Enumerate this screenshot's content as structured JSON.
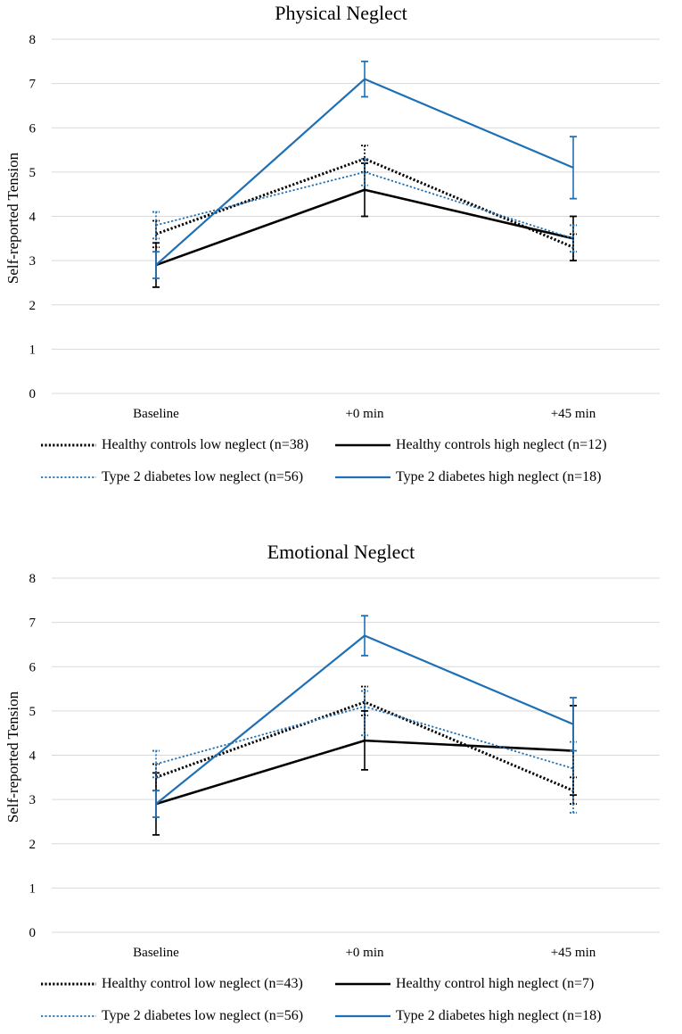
{
  "colors": {
    "healthy": "#000000",
    "diabetes": "#1f6fb5",
    "grid": "#d9d9d9"
  },
  "chart_data": [
    {
      "type": "line",
      "title": "Physical Neglect",
      "ylabel": "Self-reported Tension",
      "xlabel": "",
      "ylim": [
        0,
        8
      ],
      "yticks": [
        "0",
        "1",
        "2",
        "3",
        "4",
        "5",
        "6",
        "7",
        "8"
      ],
      "categories": [
        "Baseline",
        "+0 min",
        "+45 min"
      ],
      "grid": "horizontal",
      "legend_position": "bottom",
      "series": [
        {
          "name": "Healthy controls low neglect (n=38)",
          "group": "healthy",
          "style": "dotted",
          "values": [
            3.6,
            5.3,
            3.3
          ],
          "err_low": [
            3.3,
            5.0,
            3.0
          ],
          "err_high": [
            3.9,
            5.6,
            3.6
          ]
        },
        {
          "name": "Healthy controls high neglect (n=12)",
          "group": "healthy",
          "style": "solid",
          "values": [
            2.9,
            4.6,
            3.5
          ],
          "err_low": [
            2.4,
            4.0,
            3.0
          ],
          "err_high": [
            3.4,
            5.2,
            4.0
          ]
        },
        {
          "name": "Type 2 diabetes low neglect (n=56)",
          "group": "diabetes",
          "style": "dotted",
          "values": [
            3.8,
            5.0,
            3.5
          ],
          "err_low": [
            3.5,
            4.7,
            3.2
          ],
          "err_high": [
            4.1,
            5.3,
            3.8
          ]
        },
        {
          "name": "Type 2 diabetes high neglect (n=18)",
          "group": "diabetes",
          "style": "solid",
          "values": [
            2.9,
            7.1,
            5.1
          ],
          "err_low": [
            2.6,
            6.7,
            4.4
          ],
          "err_high": [
            3.2,
            7.5,
            5.8
          ]
        }
      ]
    },
    {
      "type": "line",
      "title": "Emotional Neglect",
      "ylabel": "Self-reported Tension",
      "xlabel": "",
      "ylim": [
        0,
        8
      ],
      "yticks": [
        "0",
        "1",
        "2",
        "3",
        "4",
        "5",
        "6",
        "7",
        "8"
      ],
      "categories": [
        "Baseline",
        "+0 min",
        "+45 min"
      ],
      "grid": "horizontal",
      "legend_position": "bottom",
      "series": [
        {
          "name": "Healthy control low neglect (n=43)",
          "group": "healthy",
          "style": "dotted",
          "values": [
            3.5,
            5.2,
            3.2
          ],
          "err_low": [
            3.2,
            4.9,
            2.9
          ],
          "err_high": [
            3.8,
            5.55,
            3.5
          ]
        },
        {
          "name": "Healthy control high neglect (n=7)",
          "group": "healthy",
          "style": "solid",
          "values": [
            2.9,
            4.33,
            4.1
          ],
          "err_low": [
            2.2,
            3.67,
            3.1
          ],
          "err_high": [
            3.6,
            5.0,
            5.12
          ]
        },
        {
          "name": "Type 2 diabetes low neglect (n=56)",
          "group": "diabetes",
          "style": "dotted",
          "values": [
            3.8,
            5.1,
            3.7
          ],
          "err_low": [
            3.5,
            4.45,
            2.7
          ],
          "err_high": [
            4.1,
            5.45,
            4.3
          ]
        },
        {
          "name": "Type 2 diabetes high neglect (n=18)",
          "group": "diabetes",
          "style": "solid",
          "values": [
            2.9,
            6.7,
            4.7
          ],
          "err_low": [
            2.6,
            6.25,
            4.1
          ],
          "err_high": [
            3.2,
            7.15,
            5.3
          ]
        }
      ]
    }
  ]
}
